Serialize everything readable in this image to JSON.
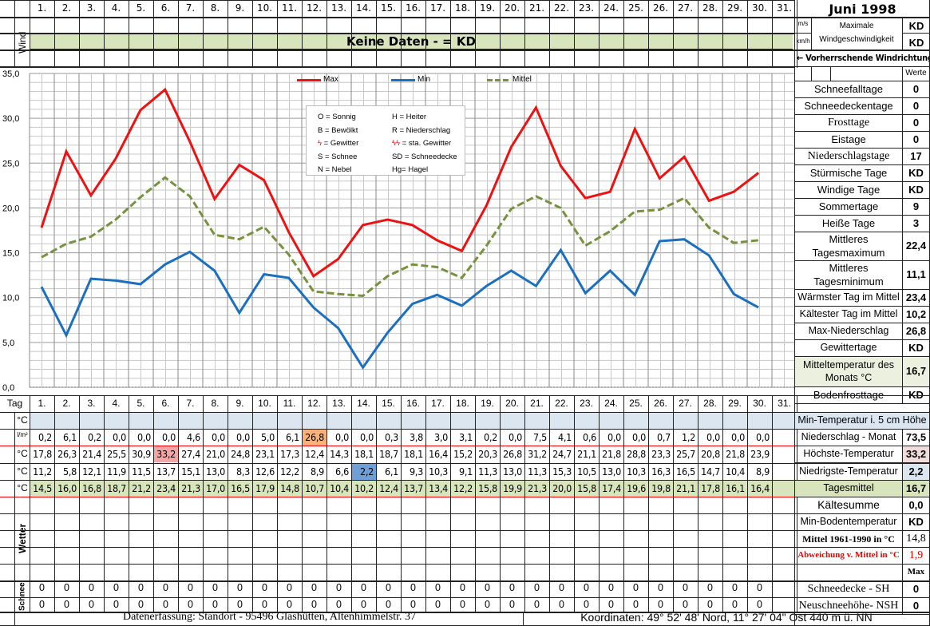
{
  "header": {
    "title": "Juni 1998",
    "day_labels": [
      "1.",
      "2.",
      "3.",
      "4.",
      "5.",
      "6.",
      "7.",
      "8.",
      "9.",
      "10.",
      "11.",
      "12.",
      "13.",
      "14.",
      "15.",
      "16.",
      "17.",
      "18.",
      "19.",
      "20.",
      "21.",
      "22.",
      "23.",
      "24.",
      "25.",
      "26.",
      "27.",
      "28.",
      "29.",
      "30.",
      "31."
    ],
    "wind_label": "Wind",
    "wind_banner": "Keine Daten -  = KD",
    "unit_ms": "m/s",
    "unit_kmh": "km/h",
    "max_wind_label_1": "Maximale",
    "max_wind_label_2": "Windgeschwindigkeit",
    "max_wind_ms": "KD",
    "max_wind_kmh": "KD",
    "prevailing_wind": "← Vorherrschende Windrichtung"
  },
  "legend_box": {
    "items": [
      [
        "O = Sonnig",
        "H = Heiter"
      ],
      [
        "B = Bewölkt",
        "R = Niederschlag"
      ],
      [
        "ϟ = Gewitter",
        "ϟϟ = sta. Gewitter"
      ],
      [
        "S = Schnee",
        "SD = Schneedecke"
      ],
      [
        "N = Nebel",
        "Hg= Hagel"
      ]
    ]
  },
  "stats": {
    "werte_label": "Werte",
    "rows": [
      {
        "label": "Schneefalltage",
        "value": "0"
      },
      {
        "label": "Schneedeckentage",
        "value": "0"
      },
      {
        "label": "Frosttage",
        "value": "0"
      },
      {
        "label": "Eistage",
        "value": "0"
      },
      {
        "label": "Niederschlagstage",
        "value": "17"
      },
      {
        "label": "Stürmische Tage",
        "value": "KD"
      },
      {
        "label": "Windige Tage",
        "value": "KD"
      },
      {
        "label": "Sommertage",
        "value": "9"
      },
      {
        "label": "Heiße Tage",
        "value": "3"
      },
      {
        "label": "Mittleres Tagesmaximum",
        "value": "22,4"
      },
      {
        "label": "Mittleres Tagesminimum",
        "value": "11,1"
      },
      {
        "label": "Wärmster Tag im Mittel",
        "value": "23,4"
      },
      {
        "label": "Kältester Tag im Mittel",
        "value": "10,2"
      },
      {
        "label": "Max-Niederschlag",
        "value": "26,8"
      },
      {
        "label": "Gewittertage",
        "value": "KD"
      },
      {
        "label": "Mitteltemperatur des Monats °C",
        "value": "16,7"
      },
      {
        "label": "Bodenfrosttage",
        "value": "KD"
      }
    ],
    "bottom": {
      "min_temp_5cm": "Min-Temperatur i. 5 cm Höhe",
      "niederschlag_monat": {
        "label": "Niederschlag - Monat",
        "value": "73,5"
      },
      "hoechste_temp": {
        "label": "Höchste-Temperatur",
        "value": "33,2"
      },
      "niedrigste_temp": {
        "label": "Niedrigste-Temperatur",
        "value": "2,2"
      },
      "tagesmittel": {
        "label": "Tagesmittel",
        "value": "16,7"
      },
      "kaeltesumme": {
        "label": "Kältesumme",
        "value": "0,0"
      },
      "min_boden": {
        "label": "Min-Bodentemperatur",
        "value": "KD"
      },
      "mittel_1961": {
        "label": "Mittel 1961-1990 in °C",
        "value": "14,8"
      },
      "abweichung": {
        "label": "Abweichung v. Mittel in °C",
        "value": "1,9"
      },
      "max_label": "Max",
      "schneedecke": {
        "label": "Schneedecke -   SH",
        "value": "0"
      },
      "neuschnee": {
        "label": "Neuschneehöhe- NSH",
        "value": "0"
      }
    }
  },
  "table": {
    "tag_label": "Tag",
    "unit_c": "°C",
    "unit_lm2": "l/m²",
    "wetter_label": "Wetter",
    "schnee_label": "Schnee",
    "precip": [
      "0,2",
      "6,1",
      "0,2",
      "0,0",
      "0,0",
      "0,0",
      "4,6",
      "0,0",
      "0,0",
      "5,0",
      "6,1",
      "26,8",
      "0,0",
      "0,0",
      "0,3",
      "3,8",
      "3,0",
      "3,1",
      "0,2",
      "0,0",
      "7,5",
      "4,1",
      "0,6",
      "0,0",
      "0,0",
      "0,7",
      "1,2",
      "0,0",
      "0,0",
      "0,0"
    ],
    "max": [
      "17,8",
      "26,3",
      "21,4",
      "25,5",
      "30,9",
      "33,2",
      "27,4",
      "21,0",
      "24,8",
      "23,1",
      "17,3",
      "12,4",
      "14,3",
      "18,1",
      "18,7",
      "18,1",
      "16,4",
      "15,2",
      "20,3",
      "26,8",
      "31,2",
      "24,7",
      "21,1",
      "21,8",
      "28,8",
      "23,3",
      "25,7",
      "20,8",
      "21,8",
      "23,9"
    ],
    "min": [
      "11,2",
      "5,8",
      "12,1",
      "11,9",
      "11,5",
      "13,7",
      "15,1",
      "13,0",
      "8,3",
      "12,6",
      "12,2",
      "8,9",
      "6,6",
      "2,2",
      "6,1",
      "9,3",
      "10,3",
      "9,1",
      "11,3",
      "13,0",
      "11,3",
      "15,3",
      "10,5",
      "13,0",
      "10,3",
      "16,3",
      "16,5",
      "14,7",
      "10,4",
      "8,9"
    ],
    "mean": [
      "14,5",
      "16,0",
      "16,8",
      "18,7",
      "21,2",
      "23,4",
      "21,3",
      "17,0",
      "16,5",
      "17,9",
      "14,8",
      "10,7",
      "10,4",
      "10,2",
      "12,4",
      "13,7",
      "13,4",
      "12,2",
      "15,8",
      "19,9",
      "21,3",
      "20,0",
      "15,8",
      "17,4",
      "19,6",
      "19,8",
      "21,1",
      "17,8",
      "16,1",
      "16,4"
    ],
    "snow_sh": [
      "0",
      "0",
      "0",
      "0",
      "0",
      "0",
      "0",
      "0",
      "0",
      "0",
      "0",
      "0",
      "0",
      "0",
      "0",
      "0",
      "0",
      "0",
      "0",
      "0",
      "0",
      "0",
      "0",
      "0",
      "0",
      "0",
      "0",
      "0",
      "0",
      "0"
    ],
    "snow_nsh": [
      "0",
      "0",
      "0",
      "0",
      "0",
      "0",
      "0",
      "0",
      "0",
      "0",
      "0",
      "0",
      "0",
      "0",
      "0",
      "0",
      "0",
      "0",
      "0",
      "0",
      "0",
      "0",
      "0",
      "0",
      "0",
      "0",
      "0",
      "0",
      "0",
      "0"
    ]
  },
  "footer": {
    "left": "Datenerfassung:  Standort -  95496  Glashütten, Altenhimmelstr. 37",
    "right": "Koordinaten:  49° 52' 48' Nord,   11° 27' 04\" Ost   440 m ü. NN"
  },
  "colors": {
    "max": "#ee1111",
    "min": "#1a6fc0",
    "mittel": "#76923c",
    "highlight_max": "#f4a6a6",
    "highlight_min": "#6f9fd8",
    "highlight_precip": "#f9b17a",
    "mean_row": "#d8e4bc",
    "blue_row": "#dce6f1"
  },
  "chart_data": {
    "type": "line",
    "title": "Juni 1998",
    "x": [
      1,
      2,
      3,
      4,
      5,
      6,
      7,
      8,
      9,
      10,
      11,
      12,
      13,
      14,
      15,
      16,
      17,
      18,
      19,
      20,
      21,
      22,
      23,
      24,
      25,
      26,
      27,
      28,
      29,
      30
    ],
    "series": [
      {
        "name": "Max",
        "color": "#ee1111",
        "values": [
          17.8,
          26.3,
          21.4,
          25.5,
          30.9,
          33.2,
          27.4,
          21.0,
          24.8,
          23.1,
          17.3,
          12.4,
          14.3,
          18.1,
          18.7,
          18.1,
          16.4,
          15.2,
          20.3,
          26.8,
          31.2,
          24.7,
          21.1,
          21.8,
          28.8,
          23.3,
          25.7,
          20.8,
          21.8,
          23.9
        ]
      },
      {
        "name": "Min",
        "color": "#1a6fc0",
        "values": [
          11.2,
          5.8,
          12.1,
          11.9,
          11.5,
          13.7,
          15.1,
          13.0,
          8.3,
          12.6,
          12.2,
          8.9,
          6.6,
          2.2,
          6.1,
          9.3,
          10.3,
          9.1,
          11.3,
          13.0,
          11.3,
          15.3,
          10.5,
          13.0,
          10.3,
          16.3,
          16.5,
          14.7,
          10.4,
          8.9
        ]
      },
      {
        "name": "Mittel",
        "color": "#76923c",
        "dashed": true,
        "values": [
          14.5,
          16.0,
          16.8,
          18.7,
          21.2,
          23.4,
          21.3,
          17.0,
          16.5,
          17.9,
          14.8,
          10.7,
          10.4,
          10.2,
          12.4,
          13.7,
          13.4,
          12.2,
          15.8,
          19.9,
          21.3,
          20.0,
          15.8,
          17.4,
          19.6,
          19.8,
          21.1,
          17.8,
          16.1,
          16.4
        ]
      }
    ],
    "yticks": [
      "0,0",
      "5,0",
      "10,0",
      "15,0",
      "20,0",
      "25,0",
      "30,0",
      "35,0"
    ],
    "ylim": [
      0,
      35
    ],
    "xlabel": "",
    "ylabel": "°C",
    "grid": true,
    "legend_position": "top"
  }
}
